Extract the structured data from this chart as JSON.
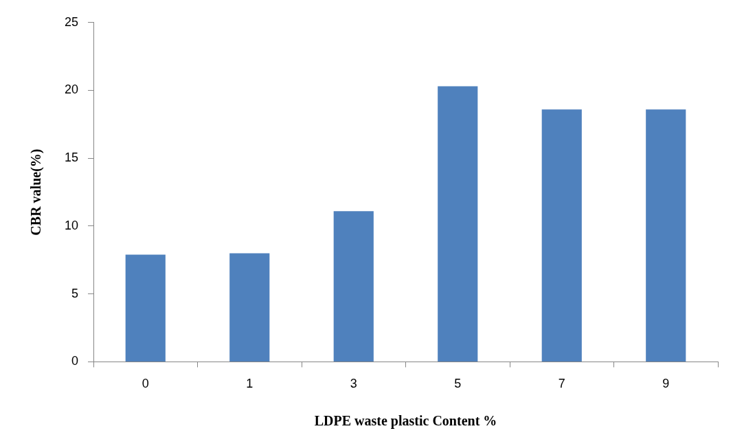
{
  "chart_data": {
    "type": "bar",
    "xlabel": "LDPE waste plastic Content %",
    "ylabel": "CBR value(%)",
    "categories": [
      "0",
      "1",
      "3",
      "5",
      "7",
      "9"
    ],
    "values": [
      7.9,
      8.0,
      11.1,
      20.3,
      18.6,
      18.6
    ],
    "color": "#4f81bd",
    "ylim": [
      0,
      25
    ],
    "yticks": [
      0,
      5,
      10,
      15,
      20,
      25
    ],
    "grid": false,
    "legend": false
  }
}
